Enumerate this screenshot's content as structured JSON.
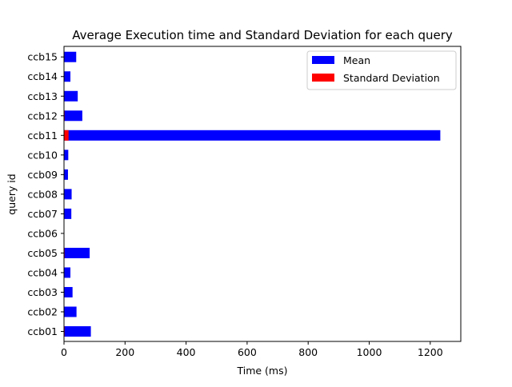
{
  "chart_data": {
    "type": "bar",
    "orientation": "horizontal",
    "title": "Average Execution time and Standard Deviation for each query",
    "xlabel": "Time (ms)",
    "ylabel": "query id",
    "xlim": [
      0,
      1300
    ],
    "xticks": [
      0,
      200,
      400,
      600,
      800,
      1000,
      1200
    ],
    "categories": [
      "ccb01",
      "ccb02",
      "ccb03",
      "ccb04",
      "ccb05",
      "ccb06",
      "ccb07",
      "ccb08",
      "ccb09",
      "ccb10",
      "ccb11",
      "ccb12",
      "ccb13",
      "ccb14",
      "ccb15"
    ],
    "series": [
      {
        "name": "Mean",
        "color": "#0000ff",
        "values": [
          88,
          41,
          28,
          21,
          84,
          0,
          24,
          25,
          13,
          14,
          1233,
          60,
          45,
          21,
          40
        ]
      },
      {
        "name": "Standard Deviation",
        "color": "#ff0000",
        "values": [
          2,
          1,
          1,
          1,
          2,
          0,
          1,
          1,
          1,
          1,
          15,
          2,
          1,
          1,
          1
        ]
      }
    ],
    "legend_position": "top-right",
    "grid": false
  }
}
